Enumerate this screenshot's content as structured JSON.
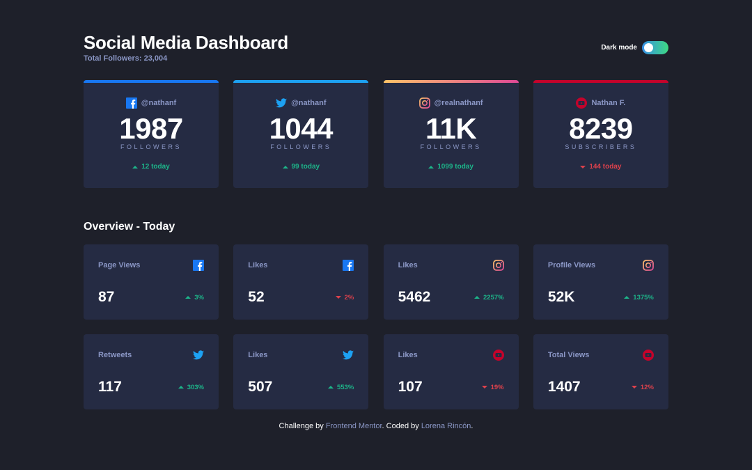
{
  "header": {
    "title": "Social Media Dashboard",
    "total": "Total Followers: 23,004",
    "dark_mode_label": "Dark mode",
    "dark_mode_on": true
  },
  "colors": {
    "facebook": "#1877f2",
    "twitter": "#1da1f2",
    "instagram": [
      "#fdc468",
      "#df4996"
    ],
    "youtube": "#c4032b",
    "up": "#1db489",
    "down": "#dc414c"
  },
  "followers": [
    {
      "platform": "facebook",
      "icon": "facebook-icon",
      "handle": "@nathanf",
      "count": "1987",
      "unit": "FOLLOWERS",
      "today": "12 today",
      "trend": "up"
    },
    {
      "platform": "twitter",
      "icon": "twitter-icon",
      "handle": "@nathanf",
      "count": "1044",
      "unit": "FOLLOWERS",
      "today": "99 today",
      "trend": "up"
    },
    {
      "platform": "instagram",
      "icon": "instagram-icon",
      "handle": "@realnathanf",
      "count": "11K",
      "unit": "FOLLOWERS",
      "today": "1099 today",
      "trend": "up"
    },
    {
      "platform": "youtube",
      "icon": "youtube-icon",
      "handle": "Nathan F.",
      "count": "8239",
      "unit": "SUBSCRIBERS",
      "today": "144 today",
      "trend": "down"
    }
  ],
  "overview": {
    "title": "Overview - Today",
    "items": [
      {
        "label": "Page Views",
        "platform": "facebook",
        "value": "87",
        "pct": "3%",
        "trend": "up"
      },
      {
        "label": "Likes",
        "platform": "facebook",
        "value": "52",
        "pct": "2%",
        "trend": "down"
      },
      {
        "label": "Likes",
        "platform": "instagram",
        "value": "5462",
        "pct": "2257%",
        "trend": "up"
      },
      {
        "label": "Profile Views",
        "platform": "instagram",
        "value": "52K",
        "pct": "1375%",
        "trend": "up"
      },
      {
        "label": "Retweets",
        "platform": "twitter",
        "value": "117",
        "pct": "303%",
        "trend": "up"
      },
      {
        "label": "Likes",
        "platform": "twitter",
        "value": "507",
        "pct": "553%",
        "trend": "up"
      },
      {
        "label": "Likes",
        "platform": "youtube",
        "value": "107",
        "pct": "19%",
        "trend": "down"
      },
      {
        "label": "Total Views",
        "platform": "youtube",
        "value": "1407",
        "pct": "12%",
        "trend": "down"
      }
    ]
  },
  "footer": {
    "prefix": "Challenge by ",
    "link1": "Frontend Mentor",
    "middle": ". Coded by ",
    "link2": "Lorena Rincón",
    "suffix": "."
  }
}
